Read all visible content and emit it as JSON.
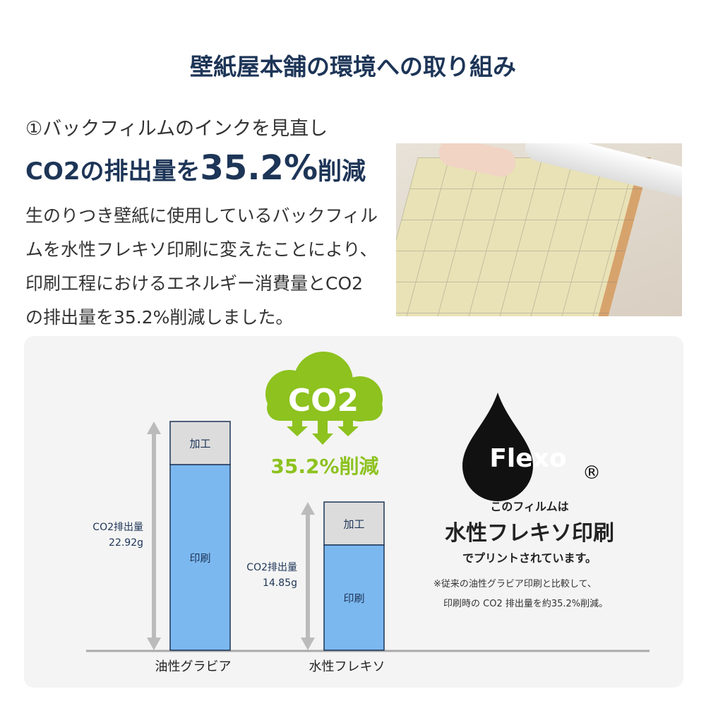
{
  "header": {
    "title": "壁紙屋本舗の環境への取り組み"
  },
  "section": {
    "subtitle": "①バックフィルムのインクを見直し",
    "headline_prefix": "CO2の排出量を",
    "headline_value": "35.2%",
    "headline_suffix": "削減",
    "body": "生のりつき壁紙に使用しているバックフィルムを水性フレキソ印刷に変えたことにより、印刷工程におけるエネルギー消費量とCO2の排出量を35.2%削減しました。"
  },
  "cloud": {
    "label": "CO2",
    "reduction": "35.2%削減",
    "color": "#8dc21f"
  },
  "flexo": {
    "logo": "Flexo",
    "registered": "®",
    "line1": "このフィルムは",
    "line2": "水性フレキソ印刷",
    "line3": "でプリントされています。",
    "note1": "※従来の油性グラビア印刷と比較して、",
    "note2": "印刷時の CO2 排出量を約35.2%削減。"
  },
  "chart_data": {
    "type": "bar",
    "stacked": true,
    "categories": [
      "油性グラビア",
      "水性フレキソ"
    ],
    "series": [
      {
        "name": "印刷",
        "values": [
          18.6,
          10.55
        ],
        "color": "#7cb8f0"
      },
      {
        "name": "加工",
        "values": [
          4.32,
          4.3
        ],
        "color": "#dcdcdc"
      }
    ],
    "totals": [
      22.92,
      14.85
    ],
    "total_labels": [
      [
        "CO2排出量",
        "22.92g"
      ],
      [
        "CO2排出量",
        "14.85g"
      ]
    ],
    "ylim": [
      0,
      22.92
    ]
  }
}
